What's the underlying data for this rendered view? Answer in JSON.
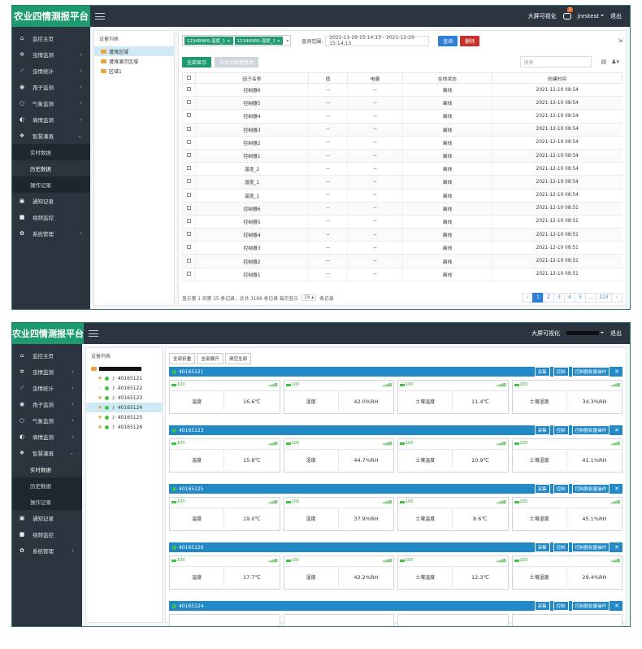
{
  "common": {
    "brand": "农业四情测报平台",
    "bigscreen": "大屏可视化",
    "badge": "2",
    "logout": "退出",
    "nav": [
      {
        "icon": "home-icon",
        "label": "监控主页",
        "sub": false
      },
      {
        "icon": "bug-icon",
        "label": "虫情监测",
        "sub": true
      },
      {
        "icon": "chart-icon",
        "label": "虫情统计",
        "sub": true
      },
      {
        "icon": "spore-icon",
        "label": "孢子监测",
        "sub": true
      },
      {
        "icon": "weather-icon",
        "label": "气象监测",
        "sub": true
      },
      {
        "icon": "soil-icon",
        "label": "墒情监测",
        "sub": true
      },
      {
        "icon": "irrigation-icon",
        "label": "智慧灌溉",
        "sub": true
      }
    ],
    "irrigation_sub": [
      "实时数据",
      "历史数据",
      "操作记录"
    ],
    "nav_bottom": [
      {
        "icon": "notice-icon",
        "label": "通知记录",
        "sub": false
      },
      {
        "icon": "video-icon",
        "label": "视频监控",
        "sub": false
      },
      {
        "icon": "settings-icon",
        "label": "系统管理",
        "sub": true
      }
    ]
  },
  "s1": {
    "username": "jnrstest",
    "tree_title": "设备列表",
    "tree": [
      "灌溉区域",
      "灌溉演示区域",
      "区域1"
    ],
    "tags": [
      "12348989-温度_1",
      "12348989-湿度_1"
    ],
    "query_label": "查询范围:",
    "range": "2021-11-29 15:14:13 - 2021-12-29 15:14:13",
    "query_btn": "查询",
    "delete_btn": "删除",
    "showall_btn": "全部显示",
    "showalarm_btn": "仅显示报警数据",
    "search_placeholder": "搜索",
    "columns": [
      "因子名称",
      "值",
      "电量",
      "在线状态",
      "创建时间"
    ],
    "rows": [
      [
        "控制器6",
        "--",
        "--",
        "离线",
        "2021-12-10 08:54"
      ],
      [
        "控制器5",
        "--",
        "--",
        "离线",
        "2021-12-10 08:54"
      ],
      [
        "控制器4",
        "--",
        "--",
        "离线",
        "2021-12-10 08:54"
      ],
      [
        "控制器3",
        "--",
        "--",
        "离线",
        "2021-12-10 08:54"
      ],
      [
        "控制器2",
        "--",
        "--",
        "离线",
        "2021-12-10 08:54"
      ],
      [
        "控制器1",
        "--",
        "--",
        "离线",
        "2021-12-10 08:54"
      ],
      [
        "温度_2",
        "--",
        "--",
        "离线",
        "2021-12-10 08:54"
      ],
      [
        "湿度_1",
        "--",
        "--",
        "离线",
        "2021-12-10 08:54"
      ],
      [
        "温度_1",
        "--",
        "--",
        "离线",
        "2021-12-10 08:54"
      ],
      [
        "控制器6",
        "--",
        "--",
        "离线",
        "2021-12-10 08:51"
      ],
      [
        "控制器5",
        "--",
        "--",
        "离线",
        "2021-12-10 08:51"
      ],
      [
        "控制器4",
        "--",
        "--",
        "离线",
        "2021-12-10 08:51"
      ],
      [
        "控制器3",
        "--",
        "--",
        "离线",
        "2021-12-10 08:51"
      ],
      [
        "控制器2",
        "--",
        "--",
        "离线",
        "2021-12-10 08:51"
      ],
      [
        "控制器1",
        "--",
        "--",
        "离线",
        "2021-12-10 08:51"
      ]
    ],
    "pager_text": "显示第 1 到第 15 条记录，总共 3186 条记录 每页显示",
    "page_size": "15",
    "pager_suffix": "条记录",
    "pages": [
      "‹",
      "1",
      "2",
      "3",
      "4",
      "5",
      "...",
      "213",
      "›"
    ]
  },
  "s2": {
    "tree_title": "设备列表",
    "devices": [
      {
        "id": "40165121",
        "star": true
      },
      {
        "id": "40165122",
        "star": false
      },
      {
        "id": "40165123",
        "star": true
      },
      {
        "id": "40165124",
        "star": true,
        "sel": true
      },
      {
        "id": "40165125",
        "star": true
      },
      {
        "id": "40165126",
        "star": true
      }
    ],
    "collapse_all": "全部折叠",
    "expand_all": "全部展开",
    "clear_all": "清空全部",
    "btn_collect": "采集",
    "btn_control": "控制",
    "btn_batch": "控制器批量操作",
    "battery": "100",
    "cards": [
      {
        "id": "40165121",
        "sensors": [
          [
            "温度",
            "16.6℃"
          ],
          [
            "湿度",
            "42.0%RH"
          ],
          [
            "土壤温度",
            "11.4℃"
          ],
          [
            "土壤湿度",
            "34.3%RH"
          ]
        ]
      },
      {
        "id": "40165123",
        "sensors": [
          [
            "温度",
            "15.8℃"
          ],
          [
            "湿度",
            "44.7%RH"
          ],
          [
            "土壤温度",
            "10.9℃"
          ],
          [
            "土壤湿度",
            "41.1%RH"
          ]
        ]
      },
      {
        "id": "40165125",
        "sensors": [
          [
            "温度",
            "19.0℃"
          ],
          [
            "湿度",
            "37.9%RH"
          ],
          [
            "土壤温度",
            "8.6℃"
          ],
          [
            "土壤湿度",
            "45.1%RH"
          ]
        ]
      },
      {
        "id": "40165126",
        "sensors": [
          [
            "温度",
            "17.7℃"
          ],
          [
            "湿度",
            "42.2%RH"
          ],
          [
            "土壤温度",
            "12.3℃"
          ],
          [
            "土壤湿度",
            "29.4%RH"
          ]
        ]
      },
      {
        "id": "40165124",
        "sensors": []
      }
    ]
  }
}
